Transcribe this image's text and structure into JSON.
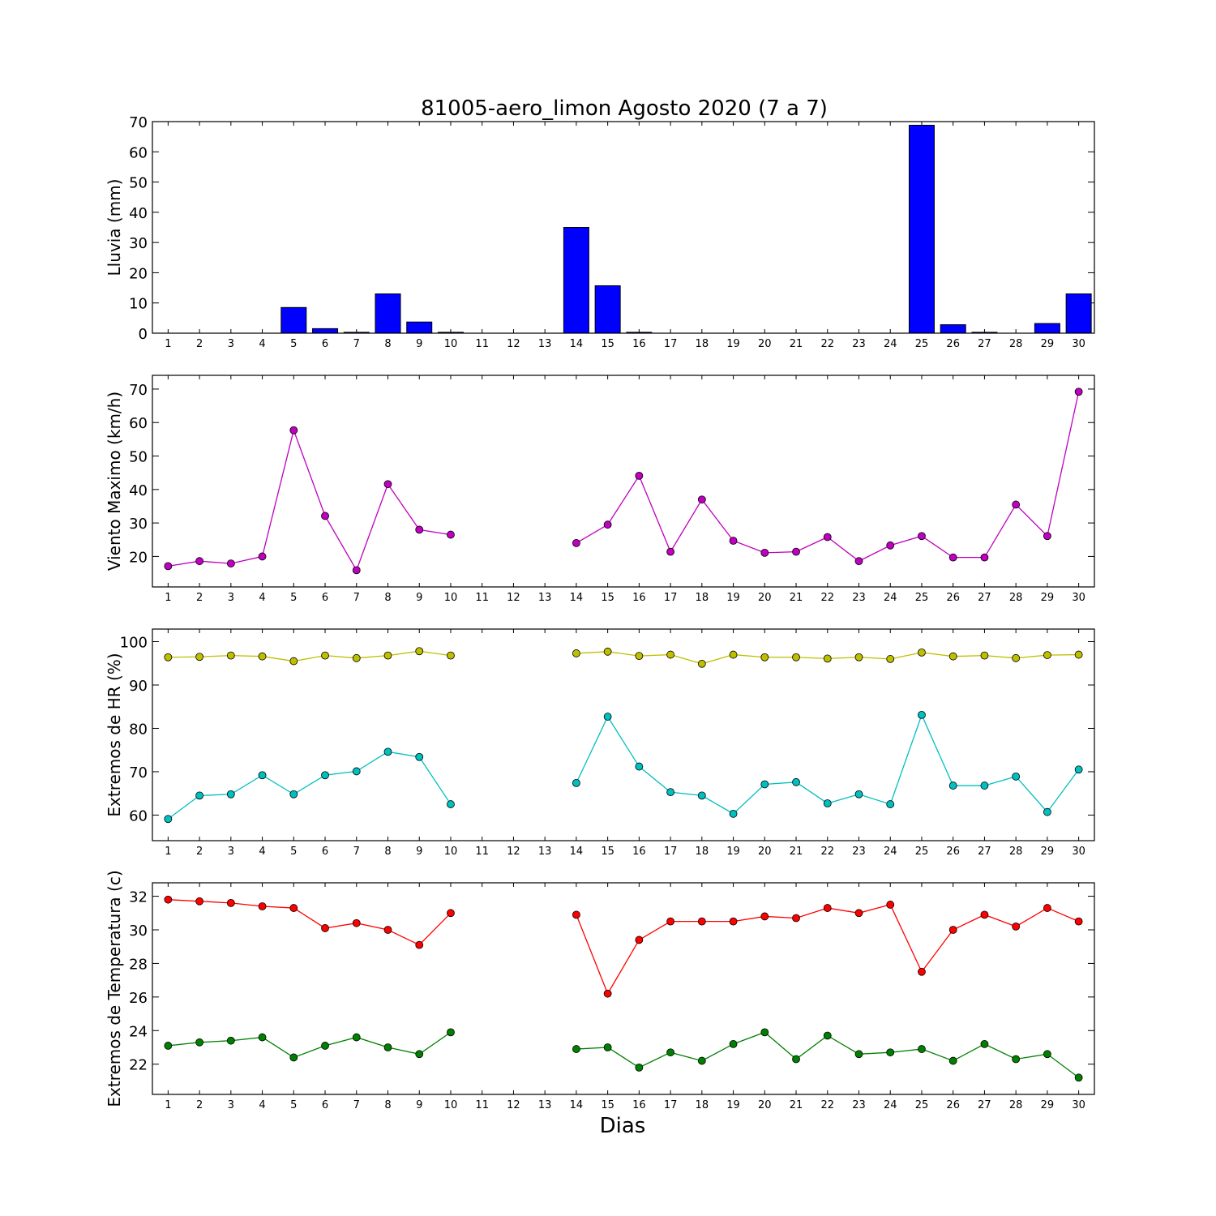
{
  "title": "81005-aero_limon Agosto 2020  (7 a 7)",
  "xlabel": "Dias",
  "chart_data": [
    {
      "type": "bar",
      "ylabel": "Lluvia (mm)",
      "ylim": [
        0,
        70
      ],
      "yticks": [
        0,
        10,
        20,
        30,
        40,
        50,
        60,
        70
      ],
      "categories": [
        1,
        2,
        3,
        4,
        5,
        6,
        7,
        8,
        9,
        10,
        11,
        12,
        13,
        14,
        15,
        16,
        17,
        18,
        19,
        20,
        21,
        22,
        23,
        24,
        25,
        26,
        27,
        28,
        29,
        30
      ],
      "series": [
        {
          "color": "#0000ff",
          "values": [
            0,
            0,
            0,
            0,
            8.5,
            1.5,
            0.3,
            13,
            3.7,
            0.3,
            0,
            0,
            0,
            35,
            15.7,
            0.3,
            0,
            0,
            0,
            0,
            0,
            0,
            0,
            0,
            68.8,
            2.8,
            0.3,
            0,
            3.2,
            13
          ]
        }
      ]
    },
    {
      "type": "line",
      "ylabel": "Viento Maximo (km/h)",
      "ylim": [
        10.9,
        74.1
      ],
      "yticks": [
        20,
        30,
        40,
        50,
        60,
        70
      ],
      "categories": [
        1,
        2,
        3,
        4,
        5,
        6,
        7,
        8,
        9,
        10,
        11,
        12,
        13,
        14,
        15,
        16,
        17,
        18,
        19,
        20,
        21,
        22,
        23,
        24,
        25,
        26,
        27,
        28,
        29,
        30
      ],
      "series": [
        {
          "color": "#bf00bf",
          "values": [
            17.1,
            18.6,
            17.9,
            20,
            57.7,
            32.1,
            15.9,
            41.6,
            28,
            26.5,
            null,
            null,
            null,
            24,
            29.5,
            44.1,
            21.4,
            37,
            24.7,
            21.1,
            21.4,
            25.8,
            18.6,
            23.3,
            26.1,
            19.7,
            19.7,
            35.5,
            26.1,
            69.2
          ]
        }
      ]
    },
    {
      "type": "line",
      "ylabel": "Extremos de HR (%)",
      "ylim": [
        54.1,
        102.9
      ],
      "yticks": [
        60,
        70,
        80,
        90,
        100
      ],
      "categories": [
        1,
        2,
        3,
        4,
        5,
        6,
        7,
        8,
        9,
        10,
        11,
        12,
        13,
        14,
        15,
        16,
        17,
        18,
        19,
        20,
        21,
        22,
        23,
        24,
        25,
        26,
        27,
        28,
        29,
        30
      ],
      "series": [
        {
          "color": "#bfbf00",
          "values": [
            96.4,
            96.5,
            96.8,
            96.6,
            95.5,
            96.8,
            96.2,
            96.8,
            97.8,
            96.8,
            null,
            null,
            null,
            97.3,
            97.7,
            96.7,
            97,
            94.9,
            97,
            96.4,
            96.4,
            96.1,
            96.4,
            96,
            97.5,
            96.6,
            96.8,
            96.2,
            96.9,
            97
          ]
        },
        {
          "color": "#00bfbf",
          "values": [
            59.1,
            64.5,
            64.8,
            69.2,
            64.8,
            69.2,
            70.1,
            74.6,
            73.4,
            62.5,
            null,
            null,
            null,
            67.4,
            82.7,
            71.2,
            65.3,
            64.5,
            60.3,
            67.1,
            67.6,
            62.7,
            64.8,
            62.5,
            83.1,
            66.8,
            66.8,
            68.9,
            60.7,
            70.5
          ]
        }
      ]
    },
    {
      "type": "line",
      "ylabel": "Extremos de Temperatura (c)",
      "ylim": [
        20.2,
        32.8
      ],
      "yticks": [
        22,
        24,
        26,
        28,
        30,
        32
      ],
      "categories": [
        1,
        2,
        3,
        4,
        5,
        6,
        7,
        8,
        9,
        10,
        11,
        12,
        13,
        14,
        15,
        16,
        17,
        18,
        19,
        20,
        21,
        22,
        23,
        24,
        25,
        26,
        27,
        28,
        29,
        30
      ],
      "series": [
        {
          "color": "#ff0000",
          "values": [
            31.8,
            31.7,
            31.6,
            31.4,
            31.3,
            30.1,
            30.4,
            30,
            29.1,
            31,
            null,
            null,
            null,
            30.9,
            26.2,
            29.4,
            30.5,
            30.5,
            30.5,
            30.8,
            30.7,
            31.3,
            31,
            31.5,
            27.5,
            30,
            30.9,
            30.2,
            31.3,
            30.5
          ]
        },
        {
          "color": "#008000",
          "values": [
            23.1,
            23.3,
            23.4,
            23.6,
            22.4,
            23.1,
            23.6,
            23,
            22.6,
            23.9,
            null,
            null,
            null,
            22.9,
            23,
            21.8,
            22.7,
            22.2,
            23.2,
            23.9,
            22.3,
            23.7,
            22.6,
            22.7,
            22.9,
            22.2,
            23.2,
            22.3,
            22.6,
            21.2
          ]
        }
      ]
    }
  ]
}
